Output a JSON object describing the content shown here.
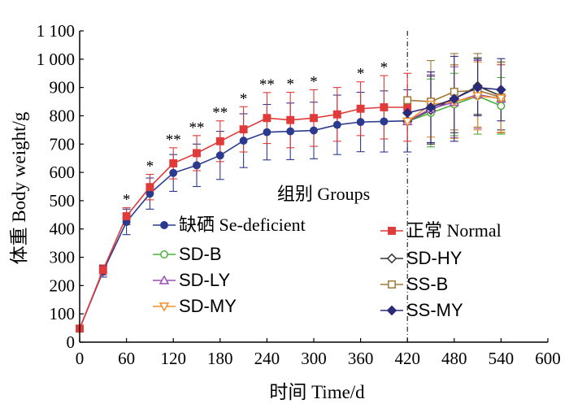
{
  "chart_data": {
    "type": "line",
    "xlabel": "时间  Time/d",
    "ylabel": "体重  Body weight/g",
    "xlim": [
      0,
      600
    ],
    "ylim": [
      0,
      1100
    ],
    "x_ticks": [
      0,
      60,
      120,
      180,
      240,
      300,
      360,
      420,
      480,
      540,
      600
    ],
    "x_tick_labels": [
      "0",
      "60",
      "120",
      "180",
      "240",
      "300",
      "360",
      "420",
      "480",
      "540",
      "600"
    ],
    "y_ticks": [
      0,
      100,
      200,
      300,
      400,
      500,
      600,
      700,
      800,
      900,
      1000,
      1100
    ],
    "y_tick_labels": [
      "0",
      "100",
      "200",
      "300",
      "400",
      "500",
      "600",
      "700",
      "800",
      "900",
      "1 000",
      "1 100"
    ],
    "vline_x": 420,
    "legend_title": "组别  Groups",
    "grid": false,
    "series": [
      {
        "name": "缺硒  Se-deficient",
        "color": "#2b3a8f",
        "marker": "circle-filled",
        "x": [
          0,
          30,
          60,
          90,
          120,
          150,
          180,
          210,
          240,
          270,
          300,
          330,
          360,
          390,
          420
        ],
        "y": [
          48,
          250,
          425,
          525,
          598,
          625,
          660,
          712,
          742,
          745,
          748,
          768,
          778,
          780,
          782
        ],
        "err": [
          0,
          20,
          45,
          55,
          65,
          75,
          85,
          95,
          98,
          100,
          100,
          105,
          105,
          108,
          110
        ]
      },
      {
        "name": "正常  Normal",
        "color": "#e03a3a",
        "marker": "square-filled",
        "x": [
          0,
          30,
          60,
          90,
          120,
          150,
          180,
          210,
          240,
          270,
          300,
          330,
          360,
          390,
          420
        ],
        "y": [
          48,
          255,
          445,
          548,
          632,
          668,
          710,
          752,
          792,
          785,
          792,
          805,
          825,
          830,
          830
        ],
        "err": [
          0,
          18,
          30,
          45,
          55,
          62,
          72,
          80,
          90,
          98,
          100,
          95,
          95,
          112,
          120
        ]
      },
      {
        "name": "SD-B",
        "color": "#4caf3a",
        "marker": "circle-open",
        "x": [
          420,
          450,
          480,
          510,
          540
        ],
        "y": [
          780,
          810,
          840,
          870,
          835
        ],
        "err": [
          0,
          120,
          110,
          135,
          100
        ]
      },
      {
        "name": "SD-HY",
        "color": "#333333",
        "marker": "diamond-open",
        "x": [
          420,
          450,
          480,
          510,
          540
        ],
        "y": [
          780,
          820,
          860,
          905,
          870
        ],
        "err": [
          0,
          120,
          120,
          100,
          120
        ]
      },
      {
        "name": "SD-LY",
        "color": "#9b4fb8",
        "marker": "triangle-up-open",
        "x": [
          420,
          450,
          480,
          510,
          540
        ],
        "y": [
          780,
          825,
          848,
          875,
          860
        ],
        "err": [
          0,
          120,
          125,
          120,
          120
        ]
      },
      {
        "name": "SS-B",
        "color": "#a0783a",
        "marker": "square-open",
        "x": [
          420,
          450,
          480,
          510,
          540
        ],
        "y": [
          855,
          850,
          885,
          890,
          865
        ],
        "err": [
          0,
          145,
          135,
          130,
          125
        ]
      },
      {
        "name": "SD-MY",
        "color": "#f0902a",
        "marker": "triangle-down-open",
        "x": [
          420,
          450,
          480,
          510,
          540
        ],
        "y": [
          780,
          840,
          850,
          870,
          862
        ],
        "err": [
          0,
          115,
          130,
          120,
          120
        ]
      },
      {
        "name": "SS-MY",
        "color": "#2a2a7a",
        "marker": "diamond-filled",
        "x": [
          420,
          450,
          480,
          510,
          540
        ],
        "y": [
          810,
          830,
          860,
          900,
          892
        ],
        "err": [
          0,
          125,
          150,
          100,
          110
        ]
      }
    ],
    "annotations": [
      {
        "x": 60,
        "text": "*"
      },
      {
        "x": 90,
        "text": "*"
      },
      {
        "x": 120,
        "text": "**"
      },
      {
        "x": 150,
        "text": "**"
      },
      {
        "x": 180,
        "text": "**"
      },
      {
        "x": 210,
        "text": "*"
      },
      {
        "x": 240,
        "text": "**"
      },
      {
        "x": 270,
        "text": "*"
      },
      {
        "x": 300,
        "text": "*"
      },
      {
        "x": 360,
        "text": "*"
      },
      {
        "x": 390,
        "text": "*"
      }
    ]
  }
}
